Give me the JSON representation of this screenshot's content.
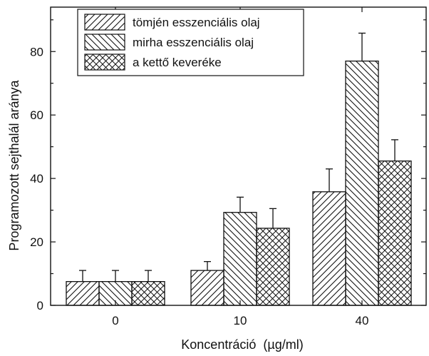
{
  "chart_data": {
    "type": "bar",
    "title": "",
    "xlabel": "Koncentráció  (µg/ml)",
    "ylabel": "Programozott sejthalál aránya",
    "categories": [
      "0",
      "10",
      "40"
    ],
    "ylim": [
      0,
      94
    ],
    "yticks": [
      0,
      20,
      40,
      60,
      80
    ],
    "legend_position": "top-left",
    "grid": false,
    "series": [
      {
        "name": "tömjén esszenciális olaj",
        "values": [
          7.5,
          11.0,
          35.8
        ],
        "errors": [
          3.5,
          2.8,
          7.2
        ],
        "pattern": "diagonal-forward"
      },
      {
        "name": "mirha esszenciális olaj",
        "values": [
          7.5,
          29.3,
          77.0
        ],
        "errors": [
          3.5,
          4.8,
          8.8
        ],
        "pattern": "diagonal-backward"
      },
      {
        "name": "a kettő keveréke",
        "values": [
          7.5,
          24.3,
          45.5
        ],
        "errors": [
          3.5,
          6.2,
          6.7
        ],
        "pattern": "crosshatch"
      }
    ]
  }
}
